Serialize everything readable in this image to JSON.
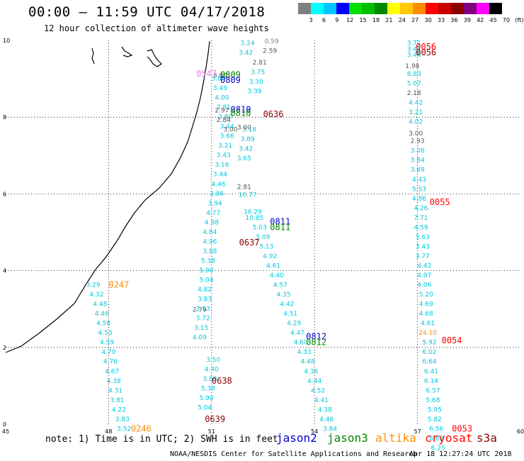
{
  "header": {
    "title": "00:00 – 11:59 UTC 04/17/2018",
    "subtitle": "12 hour collection of altimeter wave heights"
  },
  "color_scale": {
    "colors": [
      "#7f7f7f",
      "#00ffff",
      "#00c4ff",
      "#0000ff",
      "#00e000",
      "#00c000",
      "#008800",
      "#ffff00",
      "#ffc800",
      "#ff8c00",
      "#ff0000",
      "#c80000",
      "#8b0000",
      "#800080",
      "#ff00ff",
      "#000000"
    ],
    "labels": [
      "3",
      "6",
      "9",
      "12",
      "15",
      "18",
      "21",
      "24",
      "27",
      "30",
      "33",
      "36",
      "39",
      "42",
      "45",
      "70",
      "(ft)"
    ]
  },
  "axes": {
    "x_ticks": [
      "45",
      "48",
      "51",
      "54",
      "57",
      "60"
    ],
    "y_ticks": [
      "0",
      "2",
      "4",
      "6",
      "8",
      "10"
    ]
  },
  "pass_labels": [
    {
      "text": "0547",
      "color": "#ee82ee",
      "lon": 50.85,
      "lat": 9.15
    },
    {
      "text": "0809",
      "color": "#008800",
      "lon": 51.55,
      "lat": 9.12
    },
    {
      "text": "0809",
      "color": "#0000cc",
      "lon": 51.55,
      "lat": 8.98
    },
    {
      "text": "0810",
      "color": "#0000cc",
      "lon": 51.85,
      "lat": 8.22
    },
    {
      "text": "0810",
      "color": "#008800",
      "lon": 51.85,
      "lat": 8.12
    },
    {
      "text": "0636",
      "color": "#8b0000",
      "lon": 52.8,
      "lat": 8.1
    },
    {
      "text": "0247",
      "color": "#ff8c00",
      "lon": 48.3,
      "lat": 3.65
    },
    {
      "text": "0811",
      "color": "#0000cc",
      "lon": 53.0,
      "lat": 5.3
    },
    {
      "text": "0811",
      "color": "#008800",
      "lon": 53.0,
      "lat": 5.15
    },
    {
      "text": "0637",
      "color": "#8b0000",
      "lon": 52.1,
      "lat": 4.75
    },
    {
      "text": "0812",
      "color": "#0000cc",
      "lon": 54.05,
      "lat": 2.3
    },
    {
      "text": "0812",
      "color": "#008800",
      "lon": 54.05,
      "lat": 2.15
    },
    {
      "text": "0638",
      "color": "#8b0000",
      "lon": 51.3,
      "lat": 1.15
    },
    {
      "text": "0639",
      "color": "#8b0000",
      "lon": 51.1,
      "lat": 0.15
    },
    {
      "text": "0246",
      "color": "#ff8c00",
      "lon": 48.95,
      "lat": -0.1
    },
    {
      "text": "0056",
      "color": "#ff0000",
      "lon": 57.25,
      "lat": 9.85
    },
    {
      "text": "0056",
      "color": "#8b0000",
      "lon": 57.25,
      "lat": 9.7
    },
    {
      "text": "0055",
      "color": "#ff0000",
      "lon": 57.65,
      "lat": 5.8
    },
    {
      "text": "0054",
      "color": "#ff0000",
      "lon": 58.0,
      "lat": 2.2
    },
    {
      "text": "0053",
      "color": "#ff0000",
      "lon": 58.3,
      "lat": -0.1
    }
  ],
  "tracks": [
    {
      "name": "west-track",
      "values": [
        {
          "text": "3.29",
          "lon": 47.55,
          "lat": 3.65
        },
        {
          "text": "4.32",
          "lon": 47.65,
          "lat": 3.4
        },
        {
          "text": "4.48",
          "lon": 47.75,
          "lat": 3.15
        },
        {
          "text": "4.46",
          "lon": 47.8,
          "lat": 2.9
        },
        {
          "text": "4.58",
          "lon": 47.85,
          "lat": 2.65
        },
        {
          "text": "4.53",
          "lon": 47.9,
          "lat": 2.4
        },
        {
          "text": "4.59",
          "lon": 47.95,
          "lat": 2.15
        },
        {
          "text": "4.70",
          "lon": 48.0,
          "lat": 1.9
        },
        {
          "text": "4.76",
          "lon": 48.05,
          "lat": 1.65
        },
        {
          "text": "4.67",
          "lon": 48.1,
          "lat": 1.4
        },
        {
          "text": "4.38",
          "lon": 48.15,
          "lat": 1.15
        },
        {
          "text": "4.31",
          "lon": 48.2,
          "lat": 0.9
        },
        {
          "text": "3.81",
          "lon": 48.25,
          "lat": 0.65
        },
        {
          "text": "4.22",
          "lon": 48.3,
          "lat": 0.4
        },
        {
          "text": "3.83",
          "lon": 48.4,
          "lat": 0.15
        },
        {
          "text": "3.52",
          "lon": 48.45,
          "lat": -0.1
        }
      ]
    },
    {
      "name": "middle-track",
      "values": [
        {
          "text": "3.80",
          "lon": 51.2,
          "lat": 9.03
        },
        {
          "text": "3.49",
          "lon": 51.25,
          "lat": 8.78
        },
        {
          "text": "4.00",
          "lon": 51.3,
          "lat": 8.53
        },
        {
          "text": "3.81",
          "lon": 51.35,
          "lat": 8.28
        },
        {
          "text": "3.80",
          "lon": 51.4,
          "lat": 8.03
        },
        {
          "text": "3.44",
          "lon": 51.45,
          "lat": 7.78
        },
        {
          "text": "3.66",
          "lon": 51.45,
          "lat": 7.53
        },
        {
          "text": "3.21",
          "lon": 51.4,
          "lat": 7.28
        },
        {
          "text": "3.43",
          "lon": 51.35,
          "lat": 7.03
        },
        {
          "text": "3.16",
          "lon": 51.3,
          "lat": 6.78
        },
        {
          "text": "3.44",
          "lon": 51.25,
          "lat": 6.53
        },
        {
          "text": "4.46",
          "lon": 51.2,
          "lat": 6.28
        },
        {
          "text": "3.86",
          "lon": 51.15,
          "lat": 6.03
        },
        {
          "text": "3.94",
          "lon": 51.1,
          "lat": 5.78
        },
        {
          "text": "4.77",
          "lon": 51.05,
          "lat": 5.53
        },
        {
          "text": "4.98",
          "lon": 51.0,
          "lat": 5.28
        },
        {
          "text": "4.84",
          "lon": 50.95,
          "lat": 5.03
        },
        {
          "text": "4.96",
          "lon": 50.95,
          "lat": 4.78
        },
        {
          "text": "3.88",
          "lon": 50.95,
          "lat": 4.53
        },
        {
          "text": "5.38",
          "lon": 50.9,
          "lat": 4.28
        },
        {
          "text": "5.90",
          "lon": 50.85,
          "lat": 4.03
        },
        {
          "text": "5.04",
          "lon": 50.85,
          "lat": 3.78
        },
        {
          "text": "4.82",
          "lon": 50.8,
          "lat": 3.53
        },
        {
          "text": "3.83",
          "lon": 50.8,
          "lat": 3.28
        },
        {
          "text": "3.13",
          "lon": 50.75,
          "lat": 3.03
        },
        {
          "text": "3.72",
          "lon": 50.75,
          "lat": 2.78
        },
        {
          "text": "3.15",
          "lon": 50.7,
          "lat": 2.53
        },
        {
          "text": "4.09",
          "lon": 50.65,
          "lat": 2.28
        }
      ]
    },
    {
      "name": "middle-track-south",
      "values": [
        {
          "text": "3.50",
          "lon": 51.05,
          "lat": 1.7
        },
        {
          "text": "4.40",
          "lon": 51.0,
          "lat": 1.45
        },
        {
          "text": "3.88",
          "lon": 50.95,
          "lat": 1.2
        },
        {
          "text": "5.38",
          "lon": 50.9,
          "lat": 0.95
        },
        {
          "text": "5.90",
          "lon": 50.85,
          "lat": 0.7
        },
        {
          "text": "5.04",
          "lon": 50.8,
          "lat": 0.45
        }
      ]
    },
    {
      "name": "diagonal-track",
      "values": [
        {
          "text": "3.42",
          "lon": 52.0,
          "lat": 9.7
        },
        {
          "text": "3.24",
          "lon": 52.05,
          "lat": 9.95
        },
        {
          "text": "3.75",
          "lon": 52.35,
          "lat": 9.2
        },
        {
          "text": "3.30",
          "lon": 52.3,
          "lat": 8.95
        },
        {
          "text": "3.39",
          "lon": 52.25,
          "lat": 8.7
        },
        {
          "text": "3.18",
          "lon": 52.1,
          "lat": 7.7
        },
        {
          "text": "3.89",
          "lon": 52.05,
          "lat": 7.45
        },
        {
          "text": "3.42",
          "lon": 52.0,
          "lat": 7.2
        },
        {
          "text": "3.65",
          "lon": 51.95,
          "lat": 6.95
        },
        {
          "text": "10.77",
          "lon": 52.05,
          "lat": 6.0
        },
        {
          "text": "16.29",
          "lon": 52.2,
          "lat": 5.55
        },
        {
          "text": "10.85",
          "lon": 52.25,
          "lat": 5.4
        },
        {
          "text": "5.03",
          "lon": 52.4,
          "lat": 5.15
        },
        {
          "text": "5.09",
          "lon": 52.5,
          "lat": 4.9
        },
        {
          "text": "5.13",
          "lon": 52.6,
          "lat": 4.65
        },
        {
          "text": "4.92",
          "lon": 52.7,
          "lat": 4.4
        },
        {
          "text": "4.61",
          "lon": 52.8,
          "lat": 4.15
        },
        {
          "text": "4.40",
          "lon": 52.9,
          "lat": 3.9
        },
        {
          "text": "4.57",
          "lon": 53.0,
          "lat": 3.65
        },
        {
          "text": "4.35",
          "lon": 53.1,
          "lat": 3.4
        },
        {
          "text": "4.42",
          "lon": 53.2,
          "lat": 3.15
        },
        {
          "text": "4.51",
          "lon": 53.3,
          "lat": 2.9
        },
        {
          "text": "4.29",
          "lon": 53.4,
          "lat": 2.65
        },
        {
          "text": "4.47",
          "lon": 53.5,
          "lat": 2.4
        },
        {
          "text": "4.60",
          "lon": 53.6,
          "lat": 2.15
        },
        {
          "text": "4.33",
          "lon": 53.7,
          "lat": 1.9
        },
        {
          "text": "4.48",
          "lon": 53.8,
          "lat": 1.65
        },
        {
          "text": "4.36",
          "lon": 53.9,
          "lat": 1.4
        },
        {
          "text": "4.44",
          "lon": 54.0,
          "lat": 1.15
        },
        {
          "text": "4.52",
          "lon": 54.1,
          "lat": 0.9
        },
        {
          "text": "4.41",
          "lon": 54.2,
          "lat": 0.65
        },
        {
          "text": "4.38",
          "lon": 54.3,
          "lat": 0.4
        },
        {
          "text": "4.46",
          "lon": 54.35,
          "lat": 0.15
        },
        {
          "text": "3.84",
          "lon": 54.45,
          "lat": -0.1
        }
      ]
    },
    {
      "name": "east-track",
      "values": [
        {
          "text": "3.71",
          "lon": 56.9,
          "lat": 9.95
        },
        {
          "text": "3.41",
          "lon": 56.9,
          "lat": 9.8
        },
        {
          "text": "3.46",
          "lon": 56.9,
          "lat": 9.65
        },
        {
          "text": "6.83",
          "lon": 56.9,
          "lat": 9.15
        },
        {
          "text": "5.07",
          "lon": 56.9,
          "lat": 8.9
        },
        {
          "text": "4.42",
          "lon": 56.95,
          "lat": 8.4
        },
        {
          "text": "3.21",
          "lon": 56.95,
          "lat": 8.15
        },
        {
          "text": "4.02",
          "lon": 56.95,
          "lat": 7.9
        },
        {
          "text": "3.36",
          "lon": 57.0,
          "lat": 7.15
        },
        {
          "text": "3.84",
          "lon": 57.0,
          "lat": 6.9
        },
        {
          "text": "3.49",
          "lon": 57.0,
          "lat": 6.65
        },
        {
          "text": "4.43",
          "lon": 57.05,
          "lat": 6.4
        },
        {
          "text": "5.53",
          "lon": 57.05,
          "lat": 6.15
        },
        {
          "text": "4.86",
          "lon": 57.05,
          "lat": 5.9
        },
        {
          "text": "4.26",
          "lon": 57.1,
          "lat": 5.65
        },
        {
          "text": "7.71",
          "lon": 57.1,
          "lat": 5.4
        },
        {
          "text": "4.59",
          "lon": 57.1,
          "lat": 5.15
        },
        {
          "text": "5.63",
          "lon": 57.15,
          "lat": 4.9
        },
        {
          "text": "3.43",
          "lon": 57.15,
          "lat": 4.65
        },
        {
          "text": "3.77",
          "lon": 57.15,
          "lat": 4.4
        },
        {
          "text": "4.42",
          "lon": 57.2,
          "lat": 4.15
        },
        {
          "text": "4.97",
          "lon": 57.2,
          "lat": 3.9
        },
        {
          "text": "4.06",
          "lon": 57.2,
          "lat": 3.65
        },
        {
          "text": "5.20",
          "lon": 57.25,
          "lat": 3.4
        },
        {
          "text": "4.69",
          "lon": 57.25,
          "lat": 3.15
        },
        {
          "text": "4.68",
          "lon": 57.25,
          "lat": 2.9
        },
        {
          "text": "4.61",
          "lon": 57.3,
          "lat": 2.65
        },
        {
          "text": "5.92",
          "lon": 57.35,
          "lat": 2.15
        },
        {
          "text": "6.02",
          "lon": 57.35,
          "lat": 1.9
        },
        {
          "text": "6.64",
          "lon": 57.35,
          "lat": 1.65
        },
        {
          "text": "6.41",
          "lon": 57.4,
          "lat": 1.4
        },
        {
          "text": "6.14",
          "lon": 57.4,
          "lat": 1.15
        },
        {
          "text": "6.57",
          "lon": 57.45,
          "lat": 0.9
        },
        {
          "text": "5.68",
          "lon": 57.45,
          "lat": 0.65
        },
        {
          "text": "5.95",
          "lon": 57.5,
          "lat": 0.4
        },
        {
          "text": "5.82",
          "lon": 57.5,
          "lat": 0.15
        },
        {
          "text": "6.56",
          "lon": 57.55,
          "lat": -0.1
        },
        {
          "text": "6.82",
          "lon": 57.55,
          "lat": -0.35
        },
        {
          "text": "6.25",
          "lon": 57.6,
          "lat": -0.6
        }
      ]
    }
  ],
  "special_values": [
    {
      "text": "0.59",
      "color": "#7f7f7f",
      "lon": 52.75,
      "lat": 10.0
    },
    {
      "text": "2.59",
      "color": "#555555",
      "lon": 52.7,
      "lat": 9.75
    },
    {
      "text": "2.81",
      "color": "#555555",
      "lon": 52.4,
      "lat": 9.45
    },
    {
      "text": "3.00",
      "color": "#555555",
      "lon": 51.25,
      "lat": 9.1
    },
    {
      "text": "2.97",
      "color": "#555555",
      "lon": 51.3,
      "lat": 8.2
    },
    {
      "text": "2.84",
      "color": "#555555",
      "lon": 51.35,
      "lat": 7.95
    },
    {
      "text": "3.00",
      "color": "#555555",
      "lon": 51.55,
      "lat": 7.7
    },
    {
      "text": "3.00",
      "color": "#555555",
      "lon": 51.95,
      "lat": 7.75
    },
    {
      "text": "2.81",
      "color": "#555555",
      "lon": 51.95,
      "lat": 6.2
    },
    {
      "text": "2.79",
      "color": "#555555",
      "lon": 50.65,
      "lat": 3.0
    },
    {
      "text": "1.98",
      "color": "#555555",
      "lon": 56.85,
      "lat": 9.35
    },
    {
      "text": "2.18",
      "color": "#555555",
      "lon": 56.9,
      "lat": 8.65
    },
    {
      "text": "3.00",
      "color": "#555555",
      "lon": 56.95,
      "lat": 7.6
    },
    {
      "text": "2.93",
      "color": "#555555",
      "lon": 57.0,
      "lat": 7.4
    },
    {
      "text": "24.10",
      "color": "#ff8c00",
      "lon": 57.3,
      "lat": 2.4
    }
  ],
  "note": "note: 1) Time is in UTC; 2) SWH is in feet",
  "legend": [
    {
      "label": "jason2",
      "color": "#0000cc"
    },
    {
      "label": "jason3",
      "color": "#008800"
    },
    {
      "label": "altika",
      "color": "#ff8c00"
    },
    {
      "label": "cryosat",
      "color": "#ff0000"
    },
    {
      "label": "s3a",
      "color": "#8b0000"
    }
  ],
  "footer": "NOAA/NESDIS Center for Satellite Applications and Research",
  "timestamp": "Apr 18 12:27:24 UTC 2018"
}
